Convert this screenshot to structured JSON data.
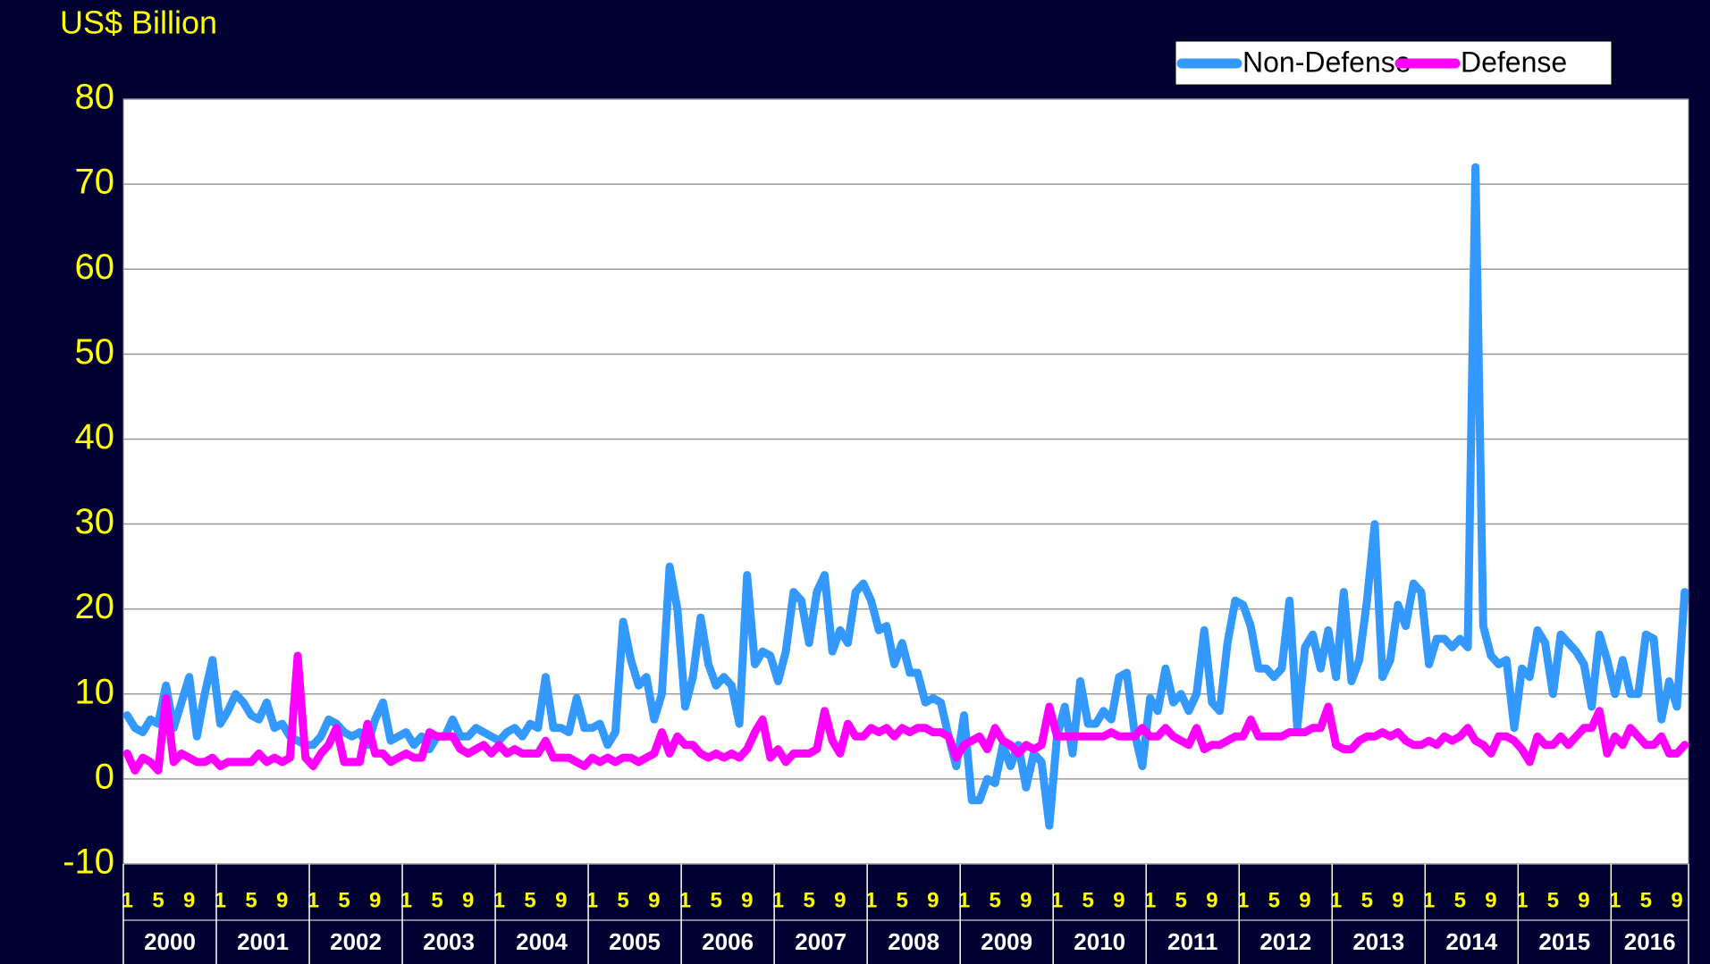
{
  "chart_data": {
    "type": "line",
    "title": "US$ Billion",
    "categories": [
      "1",
      null,
      null,
      null,
      "5",
      null,
      null,
      null,
      "9",
      null,
      null,
      null,
      "1",
      null,
      null,
      null,
      "5",
      null,
      null,
      null,
      "9",
      null,
      null,
      null,
      "1",
      null,
      null,
      null,
      "5",
      null,
      null,
      null,
      "9",
      null,
      null,
      null,
      "1",
      null,
      null,
      null,
      "5",
      null,
      null,
      null,
      "9",
      null,
      null,
      null,
      "1",
      null,
      null,
      null,
      "5",
      null,
      null,
      null,
      "9",
      null,
      null,
      null,
      "1",
      null,
      null,
      null,
      "5",
      null,
      null,
      null,
      "9",
      null,
      null,
      null,
      "1",
      null,
      null,
      null,
      "5",
      null,
      null,
      null,
      "9",
      null,
      null,
      null,
      "1",
      null,
      null,
      null,
      "5",
      null,
      null,
      null,
      "9",
      null,
      null,
      null,
      "1",
      null,
      null,
      null,
      "5",
      null,
      null,
      null,
      "9",
      null,
      null,
      null,
      "1",
      null,
      null,
      null,
      "5",
      null,
      null,
      null,
      "9",
      null,
      null,
      null,
      "1",
      null,
      null,
      null,
      "5",
      null,
      null,
      null,
      "9",
      null,
      null,
      null,
      "1",
      null,
      null,
      null,
      "5",
      null,
      null,
      null,
      "9",
      null,
      null,
      null,
      "1",
      null,
      null,
      null,
      "5",
      null,
      null,
      null,
      "9",
      null,
      null,
      null,
      "1",
      null,
      null,
      null,
      "5",
      null,
      null,
      null,
      "9",
      null,
      null,
      null,
      "1",
      null,
      null,
      null,
      "5",
      null,
      null,
      null,
      "9",
      null,
      null,
      null,
      "1",
      null,
      null,
      null,
      "5",
      null,
      null,
      null,
      "9",
      null,
      null,
      null,
      "1",
      null,
      null,
      null,
      "5",
      null,
      null,
      null,
      "9",
      null
    ],
    "years": [
      "2000",
      "2001",
      "2002",
      "2003",
      "2004",
      "2005",
      "2006",
      "2007",
      "2008",
      "2009",
      "2010",
      "2011",
      "2012",
      "2013",
      "2014",
      "2015",
      "2016"
    ],
    "series": [
      {
        "name": "Non-Defense",
        "color": "#3399ff",
        "values": [
          7.5,
          6,
          5.5,
          7,
          6.5,
          11,
          6,
          9,
          12,
          5,
          10,
          14,
          6.5,
          8,
          10,
          9,
          7.5,
          7,
          9,
          6,
          6.5,
          5,
          4.5,
          4,
          4,
          5,
          7,
          6.5,
          5.5,
          5,
          5.5,
          4,
          7,
          9,
          4.5,
          5,
          5.5,
          4,
          5,
          3.5,
          5,
          5,
          7,
          5,
          5,
          6,
          5.5,
          5,
          4.5,
          5.5,
          6,
          5,
          6.5,
          6,
          12,
          6,
          6,
          5.5,
          9.5,
          6,
          6,
          6.5,
          4,
          5.5,
          18.5,
          14,
          11,
          12,
          7,
          10,
          25,
          20,
          8.5,
          12,
          19,
          13.5,
          11,
          12,
          11,
          6.5,
          24,
          13.5,
          15,
          14.5,
          11.5,
          15,
          22,
          21,
          16,
          22,
          24,
          15,
          17.5,
          16,
          22,
          23,
          21,
          17.5,
          18,
          13.5,
          16,
          12.5,
          12.5,
          9,
          9.5,
          9,
          5,
          1.5,
          7.5,
          -2.5,
          -2.5,
          0,
          -0.5,
          4,
          1.5,
          4,
          -1,
          3,
          2,
          -5.5,
          5,
          8.5,
          3,
          11.5,
          6.5,
          6.5,
          8,
          7,
          12,
          12.5,
          5.5,
          1.5,
          9.5,
          8,
          13,
          9,
          10,
          8,
          10,
          17.5,
          9,
          8,
          16,
          21,
          20.5,
          18,
          13,
          13,
          12,
          13,
          21,
          6,
          15.5,
          17,
          13,
          17.5,
          12,
          22,
          11.5,
          14,
          21,
          30,
          12,
          14,
          20.5,
          18,
          23,
          22,
          13.5,
          16.5,
          16.5,
          15.5,
          16.5,
          15.5,
          72,
          18,
          14.5,
          13.5,
          14,
          6,
          13,
          12,
          17.5,
          16,
          10,
          17,
          16,
          15,
          13.5,
          8.5,
          17,
          14,
          10,
          14,
          10,
          10,
          17,
          16.5,
          7,
          11.5,
          8.5,
          22
        ]
      },
      {
        "name": "Defense",
        "color": "#ff00ff",
        "values": [
          3,
          1,
          2.5,
          2,
          1,
          9.5,
          2,
          3,
          2.5,
          2,
          2,
          2.5,
          1.5,
          2,
          2,
          2,
          2,
          3,
          2,
          2.5,
          2,
          2.5,
          14.5,
          2.5,
          1.5,
          3,
          4,
          6,
          2,
          2,
          2,
          6.5,
          3,
          3,
          2,
          2.5,
          3,
          2.5,
          2.5,
          5.5,
          5,
          5,
          5,
          3.5,
          3,
          3.5,
          4,
          3,
          4,
          3,
          3.5,
          3,
          3,
          3,
          4.5,
          2.5,
          2.5,
          2.5,
          2,
          1.5,
          2.5,
          2,
          2.5,
          2,
          2.5,
          2.5,
          2,
          2.5,
          3,
          5.5,
          3,
          5,
          4,
          4,
          3,
          2.5,
          3,
          2.5,
          3,
          2.5,
          3.5,
          5.5,
          7,
          2.5,
          3.5,
          2,
          3,
          3,
          3,
          3.5,
          8,
          4.5,
          3,
          6.5,
          5,
          5,
          6,
          5.5,
          6,
          5,
          6,
          5.5,
          6,
          6,
          5.5,
          5.5,
          5,
          2.5,
          4,
          4.5,
          5,
          3.5,
          6,
          4.5,
          4,
          3,
          4,
          3.5,
          4,
          8.5,
          5,
          5,
          5,
          5,
          5,
          5,
          5,
          5.5,
          5,
          5,
          5,
          6,
          5,
          5,
          6,
          5,
          4.5,
          4,
          6,
          3.5,
          4,
          4,
          4.5,
          5,
          5,
          7,
          5,
          5,
          5,
          5,
          5.5,
          5.5,
          5.5,
          6,
          6,
          8.5,
          4,
          3.5,
          3.5,
          4.5,
          5,
          5,
          5.5,
          5,
          5.5,
          4.5,
          4,
          4,
          4.5,
          4,
          5,
          4.5,
          5,
          6,
          4.5,
          4,
          3,
          5,
          5,
          4.5,
          3.5,
          2,
          5,
          4,
          4,
          5,
          4,
          5,
          6,
          6,
          8,
          3,
          5,
          4,
          6,
          5,
          4,
          4,
          5,
          3,
          3,
          4
        ]
      }
    ],
    "ylim": [
      -10,
      80
    ],
    "yticks": [
      -10,
      0,
      10,
      20,
      30,
      40,
      50,
      60,
      70,
      80
    ],
    "grid": true,
    "legend": "top-right"
  }
}
